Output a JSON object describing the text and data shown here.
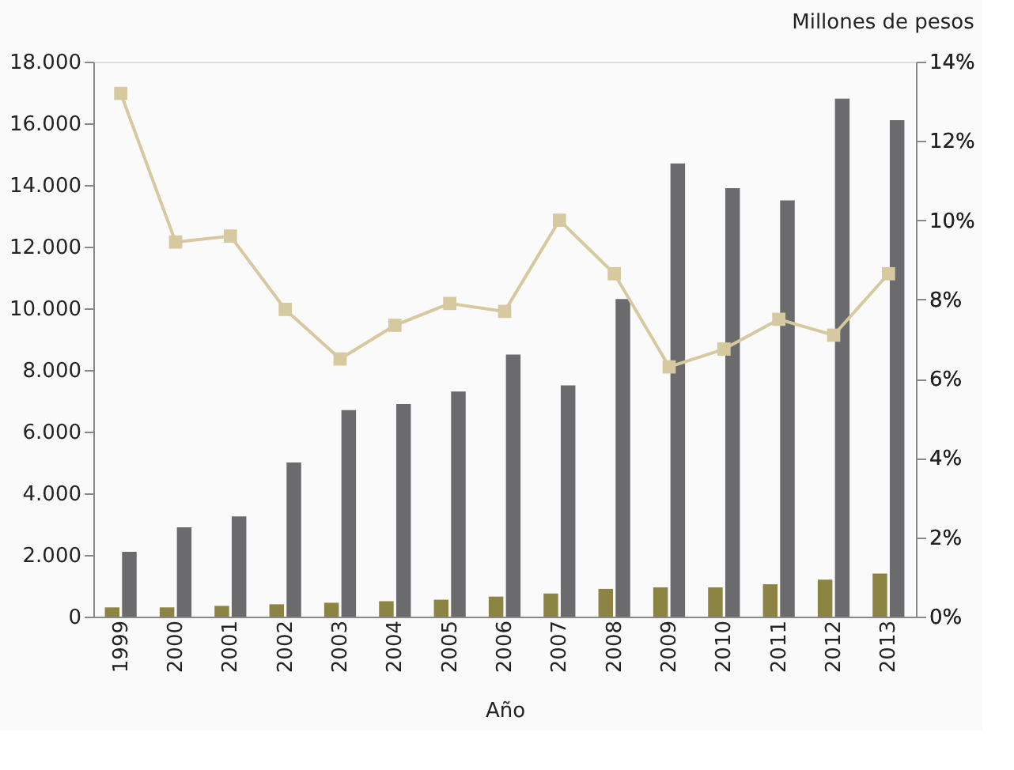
{
  "chart_data": {
    "type": "bar",
    "title": "Millones de pesos",
    "xlabel": "Año",
    "categories": [
      "1999",
      "2000",
      "2001",
      "2002",
      "2003",
      "2004",
      "2005",
      "2006",
      "2007",
      "2008",
      "2009",
      "2010",
      "2011",
      "2012",
      "2013"
    ],
    "series": [
      {
        "color": "#8c8442",
        "values": [
          300,
          300,
          350,
          400,
          450,
          500,
          550,
          650,
          750,
          900,
          950,
          950,
          1050,
          1200,
          1400
        ]
      },
      {
        "color": "#6b6b6d",
        "values": [
          2100,
          2900,
          3250,
          5000,
          6700,
          6900,
          7300,
          8500,
          7500,
          10300,
          14700,
          13900,
          13500,
          16800,
          16100
        ]
      },
      {
        "type": "line",
        "axis": "y2",
        "color": "#d6c9a0",
        "marker": "square",
        "line_style": "solid",
        "values": [
          13.2,
          9.45,
          9.6,
          7.75,
          6.5,
          7.35,
          7.9,
          7.7,
          10.0,
          8.65,
          6.3,
          6.75,
          7.5,
          7.1,
          8.65
        ]
      }
    ],
    "ylim": [
      0,
      18000
    ],
    "yticks": [
      {
        "value": 0,
        "label": "0"
      },
      {
        "value": 2000,
        "label": "2.000"
      },
      {
        "value": 4000,
        "label": "4.000"
      },
      {
        "value": 6000,
        "label": "6.000"
      },
      {
        "value": 8000,
        "label": "8.000"
      },
      {
        "value": 10000,
        "label": "10.000"
      },
      {
        "value": 12000,
        "label": "12.000"
      },
      {
        "value": 14000,
        "label": "14.000"
      },
      {
        "value": 16000,
        "label": "16.000"
      },
      {
        "value": 18000,
        "label": "18.000"
      }
    ],
    "y2lim": [
      0,
      14
    ],
    "y2ticks": [
      {
        "value": 0,
        "label": "0%"
      },
      {
        "value": 2,
        "label": "2%"
      },
      {
        "value": 4,
        "label": "4%"
      },
      {
        "value": 6,
        "label": "6%"
      },
      {
        "value": 8,
        "label": "8%"
      },
      {
        "value": 10,
        "label": "10%"
      },
      {
        "value": 12,
        "label": "12%"
      },
      {
        "value": 14,
        "label": "14%"
      }
    ],
    "grid": false,
    "legend": false
  }
}
